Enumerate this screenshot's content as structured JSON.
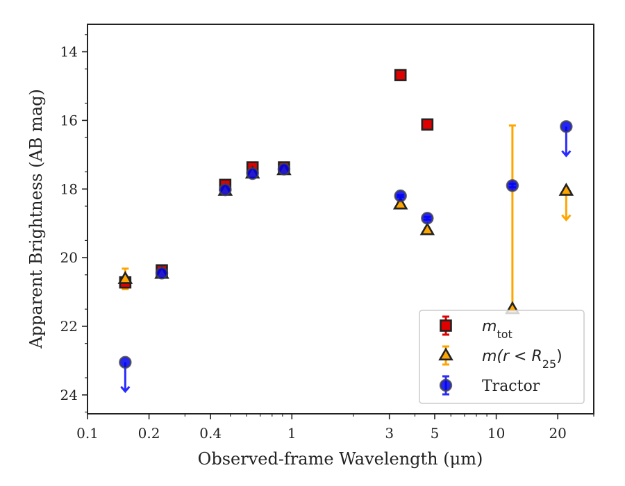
{
  "chart_data": {
    "type": "scatter",
    "xlabel": "Observed-frame Wavelength (μm)",
    "ylabel": "Apparent Brightness (AB mag)",
    "xscale": "log",
    "xlim": [
      0.1,
      30
    ],
    "ylim": [
      24.55,
      13.2
    ],
    "y_inverted": true,
    "x_ticks": [
      0.1,
      0.2,
      0.4,
      1,
      3,
      5,
      10,
      20
    ],
    "x_tick_labels": [
      "0.1",
      "0.2",
      "0.4",
      "1",
      "3",
      "5",
      "10",
      "20"
    ],
    "y_ticks": [
      14,
      16,
      18,
      20,
      22,
      24
    ],
    "y_tick_labels": [
      "14",
      "16",
      "18",
      "20",
      "22",
      "24"
    ],
    "legend_position": "lower-right",
    "series": [
      {
        "name": "m_tot",
        "legend_label": "m",
        "legend_sub": "tot",
        "marker": "square",
        "color": "#e00000",
        "edge_color": "#222222",
        "errorbar_color": "#e00000",
        "points": [
          {
            "x": 0.153,
            "y": 20.72,
            "err": 0.1
          },
          {
            "x": 0.231,
            "y": 20.37,
            "err": 0.08
          },
          {
            "x": 0.472,
            "y": 17.88,
            "err": 0.05
          },
          {
            "x": 0.642,
            "y": 17.37,
            "err": 0.04
          },
          {
            "x": 0.915,
            "y": 17.37,
            "err": 0.04
          },
          {
            "x": 3.4,
            "y": 14.68,
            "err": 0.03
          },
          {
            "x": 4.6,
            "y": 16.12,
            "err": 0.03
          }
        ]
      },
      {
        "name": "m(r<R25)",
        "legend_label": "m(r < R",
        "legend_sub": "25",
        "legend_suffix": ")",
        "marker": "triangle",
        "color": "#ffa500",
        "edge_color": "#222222",
        "errorbar_color": "#ffa500",
        "points": [
          {
            "x": 0.153,
            "y": 20.62,
            "err": 0.3
          },
          {
            "x": 0.231,
            "y": 20.47,
            "err": 0.08
          },
          {
            "x": 0.472,
            "y": 18.05,
            "err": 0.05
          },
          {
            "x": 0.642,
            "y": 17.55,
            "err": 0.04
          },
          {
            "x": 0.915,
            "y": 17.45,
            "err": 0.04
          },
          {
            "x": 3.4,
            "y": 18.45,
            "err": 0.05
          },
          {
            "x": 4.6,
            "y": 19.2,
            "err": 0.05
          },
          {
            "x": 12.0,
            "y": 21.5,
            "err_low": 5.35,
            "err_high": 0.05
          },
          {
            "x": 22.0,
            "y": 18.05,
            "upper_limit": true
          }
        ]
      },
      {
        "name": "Tractor",
        "legend_label": "Tractor",
        "marker": "circle",
        "color": "#0000ee",
        "edge_color": "#444444",
        "errorbar_color": "#2a2aff",
        "points": [
          {
            "x": 0.153,
            "y": 23.05,
            "upper_limit": true
          },
          {
            "x": 0.231,
            "y": 20.45,
            "err": 0.08
          },
          {
            "x": 0.472,
            "y": 18.02,
            "err": 0.05
          },
          {
            "x": 0.642,
            "y": 17.55,
            "err": 0.04
          },
          {
            "x": 0.915,
            "y": 17.42,
            "err": 0.04
          },
          {
            "x": 3.4,
            "y": 18.2,
            "err": 0.03
          },
          {
            "x": 4.6,
            "y": 18.85,
            "err": 0.04
          },
          {
            "x": 12.0,
            "y": 17.9,
            "err": 0.05
          },
          {
            "x": 22.0,
            "y": 16.18,
            "upper_limit": true
          }
        ]
      }
    ]
  }
}
